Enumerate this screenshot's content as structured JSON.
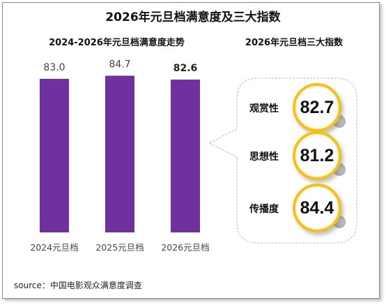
{
  "title": "2026年元旦档满意度及三大指数",
  "left_panel_title": "2024-2026年元旦档满意度走势",
  "right_panel_title": "2026年元旦档三大指数",
  "source": "source：中国电影观众满意度调查",
  "colors": {
    "bar": "#7030a0",
    "badge_ring": "#f3c01c"
  },
  "chart_data": [
    {
      "type": "bar",
      "title": "2024-2026年元旦档满意度走势",
      "categories": [
        "2024元旦档",
        "2025元旦档",
        "2026元旦档"
      ],
      "values": [
        83.0,
        84.7,
        82.6
      ],
      "value_labels": [
        "83.0",
        "84.7",
        "82.6"
      ],
      "highlight_index": 2,
      "color": "#7030a0",
      "grid": false
    },
    {
      "type": "table",
      "title": "2026年元旦档三大指数",
      "rows": [
        {
          "label": "观赏性",
          "value": "82.7"
        },
        {
          "label": "思想性",
          "value": "81.2"
        },
        {
          "label": "传播度",
          "value": "84.4"
        }
      ]
    }
  ]
}
